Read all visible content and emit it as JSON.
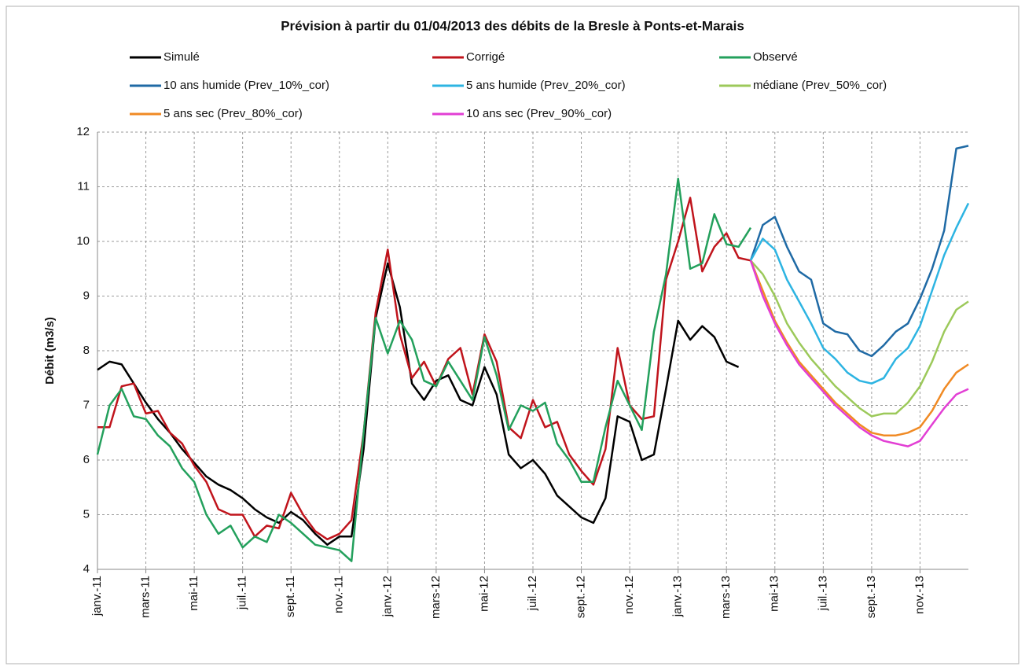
{
  "chart_data": {
    "type": "line",
    "title": "Prévision à partir du 01/04/2013 des débits de la Bresle à Ponts-et-Marais",
    "y_label": "Débit (m3/s)",
    "categories": [
      "janv.-11",
      null,
      null,
      null,
      "mars-11",
      null,
      null,
      null,
      "mai-11",
      null,
      null,
      null,
      "juil.-11",
      null,
      null,
      null,
      "sept.-11",
      null,
      null,
      null,
      "nov.-11",
      null,
      null,
      null,
      "janv.-12",
      null,
      null,
      null,
      "mars-12",
      null,
      null,
      null,
      "mai-12",
      null,
      null,
      null,
      "juil.-12",
      null,
      null,
      null,
      "sept.-12",
      null,
      null,
      null,
      "nov.-12",
      null,
      null,
      null,
      "janv.-13",
      null,
      null,
      null,
      "mars-13",
      null,
      null,
      null,
      "mai-13",
      null,
      null,
      null,
      "juil.-13",
      null,
      null,
      null,
      "sept.-13",
      null,
      null,
      null,
      "nov.-13",
      null,
      null,
      null,
      null
    ],
    "ylim": [
      4,
      12
    ],
    "yticks": [
      4,
      5,
      6,
      7,
      8,
      9,
      10,
      11,
      12
    ],
    "grid": true,
    "series": [
      {
        "name": "Simulé",
        "color": "#000000",
        "values": [
          7.65,
          7.8,
          7.75,
          7.4,
          7.05,
          6.75,
          6.5,
          6.2,
          5.95,
          5.7,
          5.55,
          5.45,
          5.3,
          5.1,
          4.95,
          4.85,
          5.05,
          4.9,
          4.65,
          4.45,
          4.6,
          4.6,
          6.2,
          8.6,
          9.6,
          8.8,
          7.4,
          7.1,
          7.45,
          7.55,
          7.1,
          7.0,
          7.7,
          7.2,
          6.1,
          5.85,
          6.0,
          5.75,
          5.35,
          5.15,
          4.95,
          4.85,
          5.3,
          6.8,
          6.7,
          6.0,
          6.1,
          7.3,
          8.55,
          8.2,
          8.45,
          8.25,
          7.8,
          7.7,
          null,
          null,
          null,
          null,
          null,
          null,
          null,
          null,
          null,
          null,
          null,
          null,
          null,
          null,
          null,
          null,
          null,
          null,
          null
        ]
      },
      {
        "name": "Corrigé",
        "color": "#c0141c",
        "values": [
          6.6,
          6.6,
          7.35,
          7.4,
          6.85,
          6.9,
          6.5,
          6.3,
          5.9,
          5.6,
          5.1,
          5.0,
          5.0,
          4.6,
          4.8,
          4.75,
          5.4,
          5.0,
          4.7,
          4.55,
          4.65,
          4.9,
          6.5,
          8.7,
          9.85,
          8.3,
          7.5,
          7.8,
          7.35,
          7.85,
          8.05,
          7.2,
          8.3,
          7.8,
          6.6,
          6.4,
          7.1,
          6.6,
          6.7,
          6.1,
          5.8,
          5.55,
          6.2,
          8.05,
          7.0,
          6.75,
          6.8,
          9.3,
          10.0,
          10.8,
          9.45,
          9.9,
          10.15,
          9.7,
          9.65,
          null,
          null,
          null,
          null,
          null,
          null,
          null,
          null,
          null,
          null,
          null,
          null,
          null,
          null,
          null,
          null,
          null,
          null
        ]
      },
      {
        "name": "Observé",
        "color": "#23a05c",
        "values": [
          6.1,
          7.0,
          7.3,
          6.8,
          6.75,
          6.45,
          6.25,
          5.85,
          5.6,
          5.0,
          4.65,
          4.8,
          4.4,
          4.6,
          4.5,
          5.0,
          4.85,
          4.65,
          4.45,
          4.4,
          4.35,
          4.15,
          6.5,
          8.6,
          7.95,
          8.55,
          8.2,
          7.45,
          7.35,
          7.8,
          7.45,
          7.1,
          8.25,
          7.55,
          6.55,
          7.0,
          6.9,
          7.05,
          6.3,
          6.0,
          5.6,
          5.6,
          6.6,
          7.45,
          7.0,
          6.55,
          8.35,
          9.4,
          11.15,
          9.5,
          9.6,
          10.5,
          9.95,
          9.9,
          10.25,
          null,
          null,
          null,
          null,
          null,
          null,
          null,
          null,
          null,
          null,
          null,
          null,
          null,
          null,
          null,
          null,
          null,
          null
        ]
      },
      {
        "name": "10 ans humide (Prev_10%_cor)",
        "color": "#1f6aa5",
        "values": [
          null,
          null,
          null,
          null,
          null,
          null,
          null,
          null,
          null,
          null,
          null,
          null,
          null,
          null,
          null,
          null,
          null,
          null,
          null,
          null,
          null,
          null,
          null,
          null,
          null,
          null,
          null,
          null,
          null,
          null,
          null,
          null,
          null,
          null,
          null,
          null,
          null,
          null,
          null,
          null,
          null,
          null,
          null,
          null,
          null,
          null,
          null,
          null,
          null,
          null,
          null,
          null,
          null,
          null,
          9.65,
          10.3,
          10.45,
          9.9,
          9.45,
          9.3,
          8.5,
          8.35,
          8.3,
          8.0,
          7.9,
          8.1,
          8.35,
          8.5,
          8.95,
          9.5,
          10.2,
          11.7,
          11.75
        ]
      },
      {
        "name": "5 ans humide (Prev_20%_cor)",
        "color": "#2db4e2",
        "values": [
          null,
          null,
          null,
          null,
          null,
          null,
          null,
          null,
          null,
          null,
          null,
          null,
          null,
          null,
          null,
          null,
          null,
          null,
          null,
          null,
          null,
          null,
          null,
          null,
          null,
          null,
          null,
          null,
          null,
          null,
          null,
          null,
          null,
          null,
          null,
          null,
          null,
          null,
          null,
          null,
          null,
          null,
          null,
          null,
          null,
          null,
          null,
          null,
          null,
          null,
          null,
          null,
          null,
          null,
          9.65,
          10.05,
          9.85,
          9.3,
          8.9,
          8.5,
          8.05,
          7.85,
          7.6,
          7.45,
          7.4,
          7.5,
          7.85,
          8.05,
          8.45,
          9.1,
          9.75,
          10.25,
          10.7
        ]
      },
      {
        "name": "médiane (Prev_50%_cor)",
        "color": "#9cc95a",
        "values": [
          null,
          null,
          null,
          null,
          null,
          null,
          null,
          null,
          null,
          null,
          null,
          null,
          null,
          null,
          null,
          null,
          null,
          null,
          null,
          null,
          null,
          null,
          null,
          null,
          null,
          null,
          null,
          null,
          null,
          null,
          null,
          null,
          null,
          null,
          null,
          null,
          null,
          null,
          null,
          null,
          null,
          null,
          null,
          null,
          null,
          null,
          null,
          null,
          null,
          null,
          null,
          null,
          null,
          null,
          9.65,
          9.4,
          9.0,
          8.5,
          8.15,
          7.85,
          7.6,
          7.35,
          7.15,
          6.95,
          6.8,
          6.85,
          6.85,
          7.05,
          7.35,
          7.8,
          8.35,
          8.75,
          8.9
        ]
      },
      {
        "name": "5 ans sec (Prev_80%_cor)",
        "color": "#f08a24",
        "values": [
          null,
          null,
          null,
          null,
          null,
          null,
          null,
          null,
          null,
          null,
          null,
          null,
          null,
          null,
          null,
          null,
          null,
          null,
          null,
          null,
          null,
          null,
          null,
          null,
          null,
          null,
          null,
          null,
          null,
          null,
          null,
          null,
          null,
          null,
          null,
          null,
          null,
          null,
          null,
          null,
          null,
          null,
          null,
          null,
          null,
          null,
          null,
          null,
          null,
          null,
          null,
          null,
          null,
          null,
          9.65,
          9.1,
          8.55,
          8.15,
          7.8,
          7.55,
          7.3,
          7.05,
          6.85,
          6.65,
          6.5,
          6.45,
          6.45,
          6.5,
          6.6,
          6.9,
          7.3,
          7.6,
          7.75
        ]
      },
      {
        "name": "10 ans sec (Prev_90%_cor)",
        "color": "#e23fd4",
        "values": [
          null,
          null,
          null,
          null,
          null,
          null,
          null,
          null,
          null,
          null,
          null,
          null,
          null,
          null,
          null,
          null,
          null,
          null,
          null,
          null,
          null,
          null,
          null,
          null,
          null,
          null,
          null,
          null,
          null,
          null,
          null,
          null,
          null,
          null,
          null,
          null,
          null,
          null,
          null,
          null,
          null,
          null,
          null,
          null,
          null,
          null,
          null,
          null,
          null,
          null,
          null,
          null,
          null,
          null,
          9.65,
          9.0,
          8.5,
          8.1,
          7.75,
          7.5,
          7.25,
          7.0,
          6.8,
          6.6,
          6.45,
          6.35,
          6.3,
          6.25,
          6.35,
          6.65,
          6.95,
          7.2,
          7.3
        ]
      }
    ]
  }
}
